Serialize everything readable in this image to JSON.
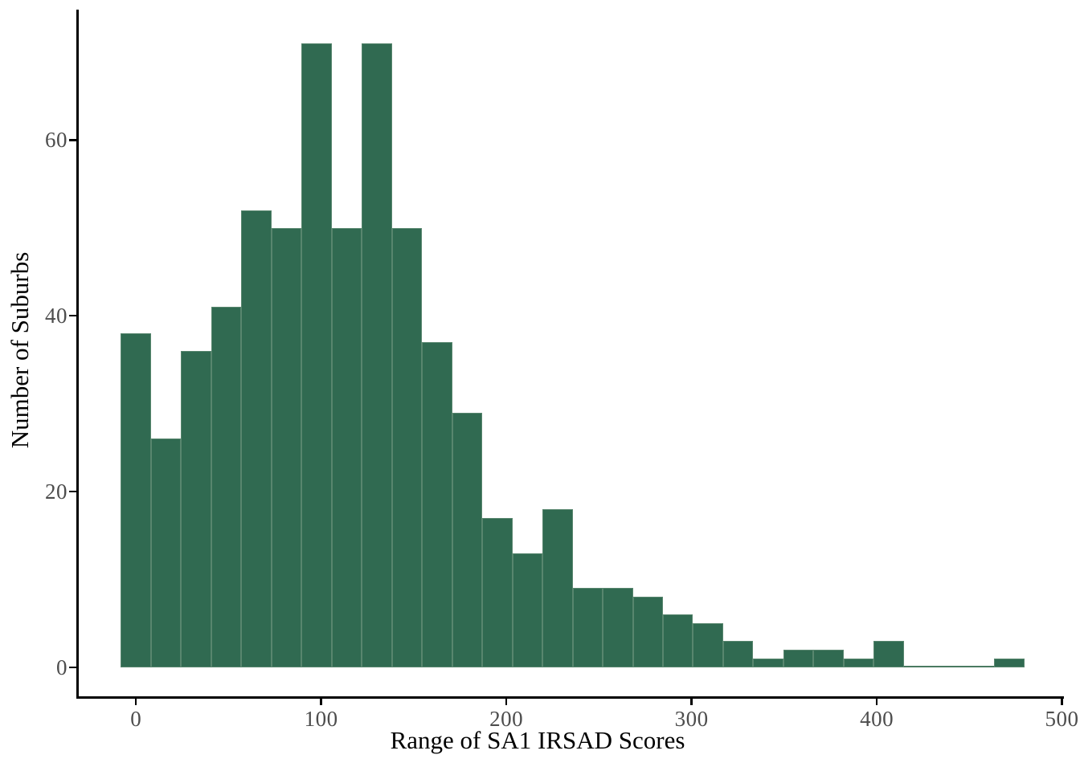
{
  "chart_data": {
    "type": "bar",
    "subtype": "histogram",
    "title": "",
    "xlabel": "Range of SA1 IRSAD Scores",
    "ylabel": "Number of Suburbs",
    "bin_start": -8.13,
    "bin_width": 16.26,
    "values": [
      38,
      26,
      36,
      41,
      52,
      50,
      71,
      50,
      71,
      50,
      37,
      29,
      17,
      13,
      18,
      9,
      9,
      8,
      6,
      5,
      3,
      1,
      2,
      2,
      1,
      3,
      0,
      0,
      0,
      1
    ],
    "x_ticks": [
      0,
      100,
      200,
      300,
      400,
      500
    ],
    "y_ticks": [
      0,
      20,
      40,
      60
    ],
    "xlim": [
      -32,
      501
    ],
    "ylim": [
      -3.4,
      74.7
    ],
    "grid": "off",
    "legend": "none",
    "colors": {
      "bar_fill": "#306a51",
      "bar_stroke": "#58866e",
      "axis": "#000000",
      "tick_label": "#4d4d4d",
      "axis_title": "#000000",
      "background": "#ffffff"
    }
  }
}
